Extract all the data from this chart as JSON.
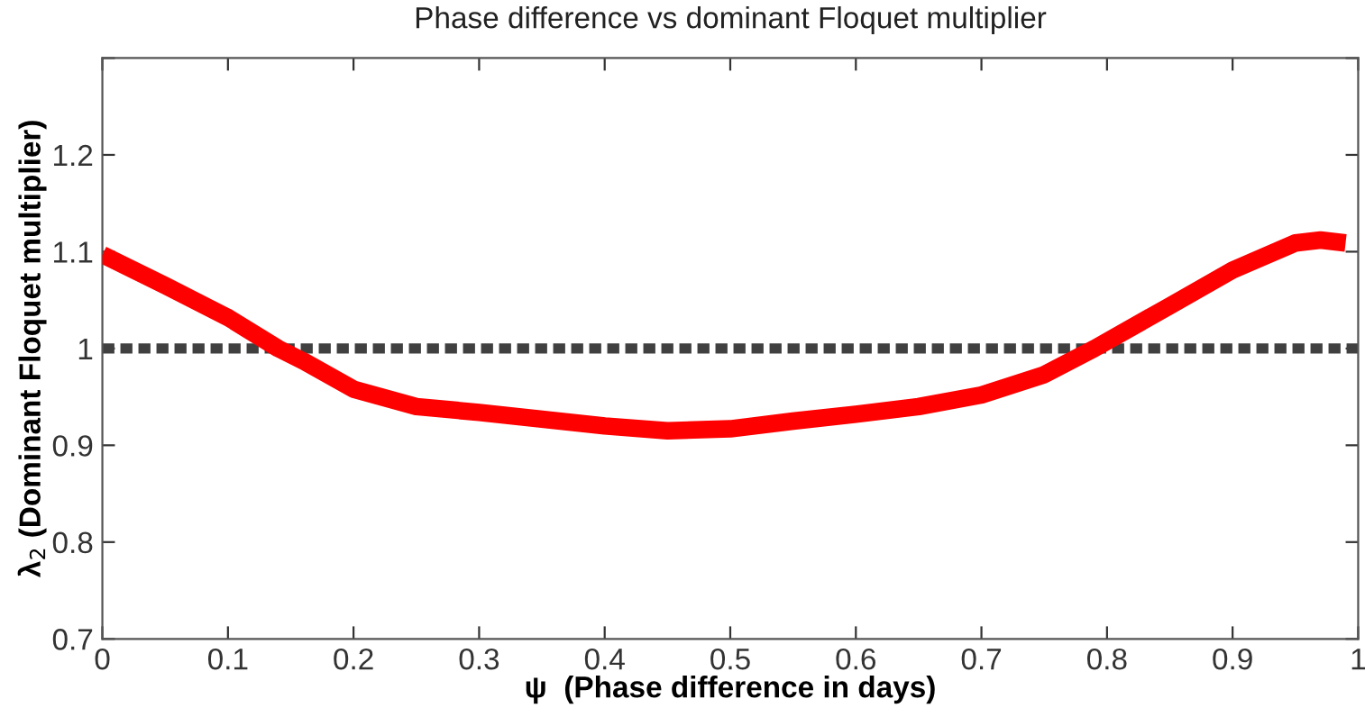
{
  "chart_data": {
    "type": "line",
    "title": "Phase difference vs dominant Floquet multiplier",
    "xlabel": "ψ  (Phase difference in days)",
    "ylabel": "λ$_{2}$ (Dominant Floquet multiplier)",
    "series": [
      {
        "color": "#ff0000",
        "x": [
          0,
          0.05,
          0.1,
          0.14,
          0.16,
          0.2,
          0.25,
          0.3,
          0.35,
          0.4,
          0.45,
          0.5,
          0.55,
          0.6,
          0.65,
          0.7,
          0.75,
          0.79,
          0.85,
          0.9,
          0.95,
          0.97,
          0.99
        ],
        "values": [
          1.097,
          1.065,
          1.032,
          1.0,
          0.987,
          0.958,
          0.94,
          0.934,
          0.927,
          0.92,
          0.915,
          0.917,
          0.925,
          0.932,
          0.94,
          0.952,
          0.973,
          1.0,
          1.044,
          1.081,
          1.109,
          1.112,
          1.109
        ]
      }
    ],
    "ref_lines": [
      {
        "axis": "y",
        "value": 1,
        "color": "#404040",
        "line_style": "dotted"
      }
    ],
    "xlim": [
      0,
      1
    ],
    "xticks": [
      0,
      0.1,
      0.2,
      0.3,
      0.4,
      0.5,
      0.6,
      0.7,
      0.8,
      0.9,
      1
    ],
    "ylim": [
      0.7,
      1.3
    ],
    "yticks": [
      0.7,
      0.8,
      0.9,
      1,
      1.1,
      1.2,
      {
        "value": 1.3,
        "label": null
      }
    ],
    "grid": false,
    "legend": false,
    "marker": "none",
    "line_style": "solid"
  }
}
